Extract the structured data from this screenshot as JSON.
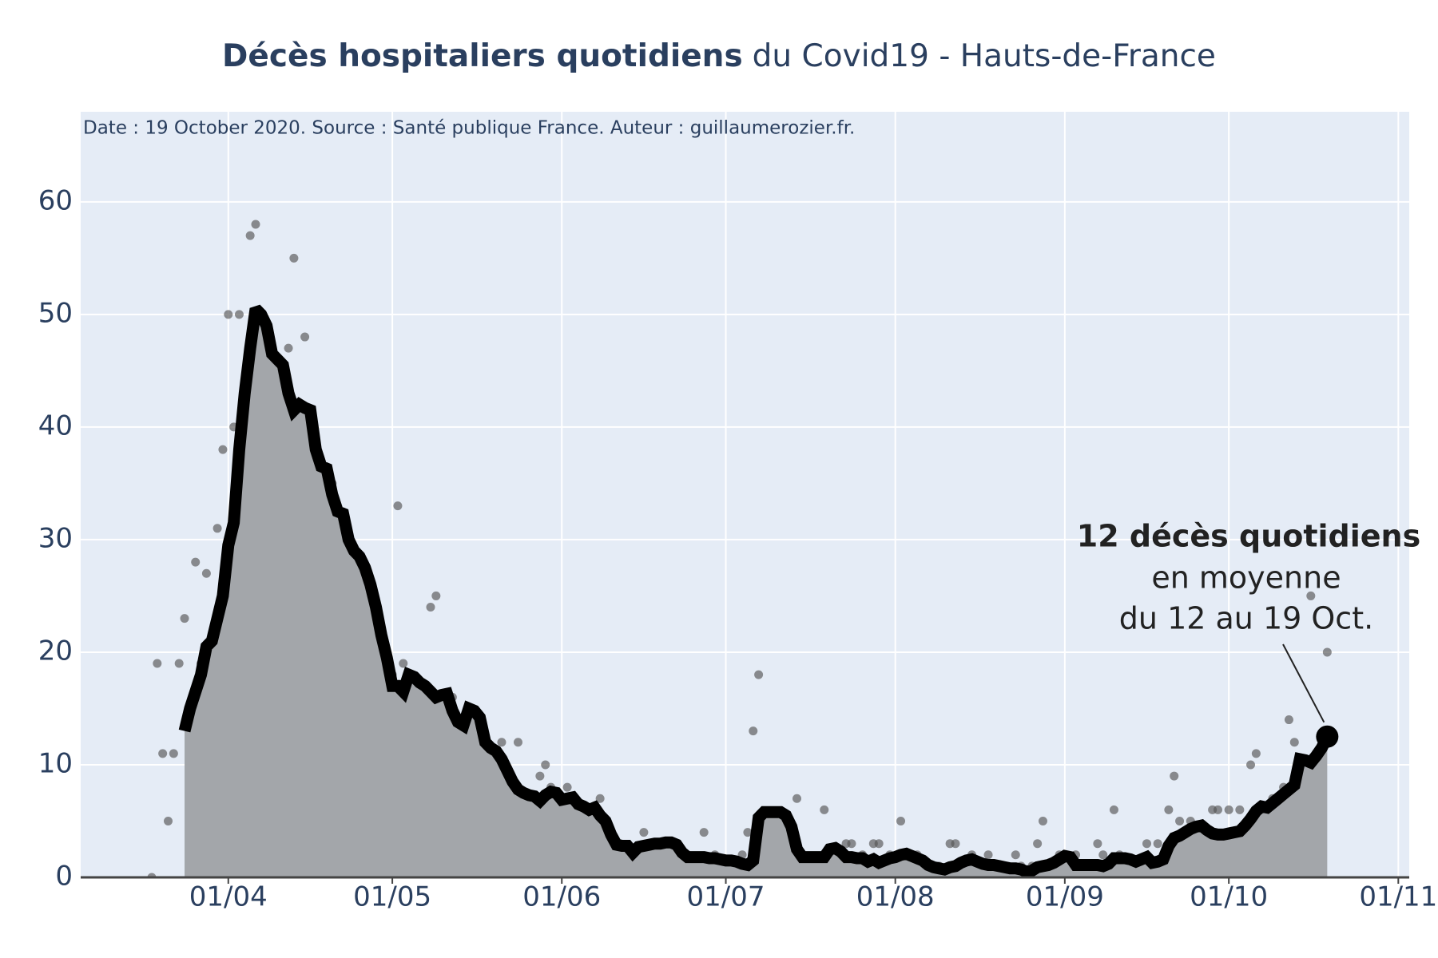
{
  "chart_data": {
    "type": "line",
    "title": "Décès hospitaliers quotidiens",
    "title_suffix": "du Covid19 - Hauts-de-France",
    "subtitle": "Date : 19 October 2020. Source : Santé publique France. Auteur : guillaumerozier.fr.",
    "annotation": {
      "title": "12 décès quotidiens",
      "lines": [
        "en moyenne",
        "du 12 au 19 Oct."
      ]
    },
    "x": [
      "18/03",
      "19/03",
      "20/03",
      "21/03",
      "22/03",
      "23/03",
      "24/03",
      "25/03",
      "26/03",
      "27/03",
      "28/03",
      "29/03",
      "30/03",
      "31/03",
      "01/04",
      "02/04",
      "03/04",
      "04/04",
      "05/04",
      "06/04",
      "07/04",
      "08/04",
      "09/04",
      "10/04",
      "11/04",
      "12/04",
      "13/04",
      "14/04",
      "15/04",
      "16/04",
      "17/04",
      "18/04",
      "19/04",
      "20/04",
      "21/04",
      "22/04",
      "23/04",
      "24/04",
      "25/04",
      "26/04",
      "27/04",
      "28/04",
      "29/04",
      "30/04",
      "01/05",
      "02/05",
      "03/05",
      "04/05",
      "05/05",
      "06/05",
      "07/05",
      "08/05",
      "09/05",
      "10/05",
      "11/05",
      "12/05",
      "13/05",
      "14/05",
      "15/05",
      "16/05",
      "17/05",
      "18/05",
      "19/05",
      "20/05",
      "21/05",
      "22/05",
      "23/05",
      "24/05",
      "25/05",
      "26/05",
      "27/05",
      "28/05",
      "29/05",
      "30/05",
      "31/05",
      "01/06",
      "02/06",
      "03/06",
      "04/06",
      "05/06",
      "06/06",
      "07/06",
      "08/06",
      "09/06",
      "10/06",
      "11/06",
      "12/06",
      "13/06",
      "14/06",
      "15/06",
      "16/06",
      "17/06",
      "18/06",
      "19/06",
      "20/06",
      "21/06",
      "22/06",
      "23/06",
      "24/06",
      "25/06",
      "26/06",
      "27/06",
      "28/06",
      "29/06",
      "30/06",
      "01/07",
      "02/07",
      "03/07",
      "04/07",
      "05/07",
      "06/07",
      "07/07",
      "08/07",
      "09/07",
      "10/07",
      "11/07",
      "12/07",
      "13/07",
      "14/07",
      "15/07",
      "16/07",
      "17/07",
      "18/07",
      "19/07",
      "20/07",
      "21/07",
      "22/07",
      "23/07",
      "24/07",
      "25/07",
      "26/07",
      "27/07",
      "28/07",
      "29/07",
      "30/07",
      "31/07",
      "01/08",
      "02/08",
      "03/08",
      "04/08",
      "05/08",
      "06/08",
      "07/08",
      "08/08",
      "09/08",
      "10/08",
      "11/08",
      "12/08",
      "13/08",
      "14/08",
      "15/08",
      "16/08",
      "17/08",
      "18/08",
      "19/08",
      "20/08",
      "21/08",
      "22/08",
      "23/08",
      "24/08",
      "25/08",
      "26/08",
      "27/08",
      "28/08",
      "29/08",
      "30/08",
      "31/08",
      "01/09",
      "02/09",
      "03/09",
      "04/09",
      "05/09",
      "06/09",
      "07/09",
      "08/09",
      "09/09",
      "10/09",
      "11/09",
      "12/09",
      "13/09",
      "14/09",
      "15/09",
      "16/09",
      "17/09",
      "18/09",
      "19/09",
      "20/09",
      "21/09",
      "22/09",
      "23/09",
      "24/09",
      "25/09",
      "26/09",
      "27/09",
      "28/09",
      "29/09",
      "30/09",
      "01/10",
      "02/10",
      "03/10",
      "04/10",
      "05/10",
      "06/10",
      "07/10",
      "08/10",
      "09/10",
      "10/10",
      "11/10",
      "12/10",
      "13/10",
      "14/10",
      "15/10",
      "16/10",
      "17/10",
      "18/10",
      "19/10"
    ],
    "series": [
      {
        "mode": "markers",
        "color": "#555555",
        "values": [
          0,
          19,
          11,
          5,
          11,
          19,
          23,
          13,
          28,
          19,
          27,
          15,
          31,
          38,
          50,
          40,
          50,
          32,
          57,
          58,
          44,
          36,
          44,
          34,
          33,
          47,
          55,
          31,
          48,
          23,
          17,
          33,
          36,
          35,
          24,
          24,
          10,
          24,
          15,
          25,
          19,
          16,
          6,
          14,
          18,
          33,
          19,
          16,
          11,
          4,
          10,
          24,
          25,
          8,
          10,
          16,
          12,
          9,
          15,
          6,
          7,
          4,
          7,
          4,
          12,
          6,
          7,
          12,
          6,
          3,
          5,
          9,
          10,
          8,
          2,
          1,
          8,
          2,
          1,
          2,
          1,
          1,
          7,
          5,
          2,
          2,
          2,
          1,
          2,
          0,
          4,
          3,
          1,
          2,
          1,
          0,
          2,
          1,
          2,
          0,
          1,
          4,
          1,
          2,
          0,
          1,
          0,
          1,
          2,
          4,
          13,
          18,
          4,
          1,
          1,
          1,
          0,
          1,
          7,
          2,
          1,
          1,
          0,
          6,
          1,
          2,
          1,
          3,
          3,
          1,
          2,
          0,
          3,
          3,
          1,
          2,
          0,
          5,
          1,
          0,
          2,
          0,
          1,
          0,
          1,
          0,
          3,
          3,
          1,
          0,
          2,
          0,
          1,
          2,
          1,
          0,
          1,
          0,
          2,
          1,
          0,
          1,
          3,
          5,
          1,
          0,
          2,
          0,
          1,
          2,
          1,
          1,
          0,
          3,
          2,
          1,
          6,
          2,
          1,
          0,
          1,
          1,
          3,
          1,
          3,
          0,
          6,
          9,
          5,
          3,
          5,
          2,
          2,
          3,
          6,
          6,
          2,
          6,
          2,
          6,
          4,
          10,
          11,
          5,
          4,
          7,
          5,
          8,
          14,
          12,
          7,
          8,
          25,
          3,
          5,
          20
        ]
      },
      {
        "mode": "lines",
        "color": "#000000",
        "fill": "#a3a6aa",
        "values": [
          null,
          null,
          null,
          null,
          null,
          null,
          13,
          15,
          16.5,
          18,
          20.5,
          21,
          23,
          25,
          29.5,
          31.5,
          38,
          43,
          47,
          50.5,
          50,
          49,
          46.5,
          46,
          45.5,
          43,
          41.5,
          42,
          41.7,
          41.5,
          38,
          36.5,
          36.3,
          34,
          32.5,
          32.3,
          30,
          29,
          28.5,
          27.5,
          26,
          24,
          21.5,
          19.5,
          17,
          17,
          16.5,
          18,
          17.8,
          17.3,
          17,
          16.5,
          16,
          16.2,
          16.3,
          14.8,
          13.8,
          13.5,
          15,
          14.8,
          14.2,
          12,
          11.5,
          11.2,
          10.5,
          9.5,
          8.5,
          7.8,
          7.5,
          7.3,
          7.2,
          6.8,
          7.3,
          7.6,
          7.5,
          6.9,
          7,
          7.1,
          6.5,
          6.3,
          6,
          6.2,
          5.5,
          5,
          3.8,
          2.9,
          2.8,
          2.8,
          2.2,
          2.7,
          2.8,
          2.9,
          3,
          3,
          3.1,
          3.1,
          2.9,
          2.2,
          1.8,
          1.8,
          1.8,
          1.8,
          1.7,
          1.7,
          1.6,
          1.5,
          1.5,
          1.4,
          1.2,
          1.1,
          1.5,
          5.3,
          5.8,
          5.8,
          5.8,
          5.8,
          5.5,
          4.5,
          2.5,
          1.8,
          1.8,
          1.8,
          1.8,
          1.8,
          2.5,
          2.6,
          2.3,
          1.8,
          1.8,
          1.7,
          1.7,
          1.4,
          1.6,
          1.3,
          1.5,
          1.7,
          1.8,
          2,
          2.1,
          1.9,
          1.7,
          1.5,
          1.1,
          0.9,
          0.8,
          0.7,
          0.9,
          1,
          1.3,
          1.5,
          1.6,
          1.4,
          1.2,
          1.1,
          1.1,
          1,
          0.9,
          0.8,
          0.8,
          0.7,
          0.5,
          0.6,
          0.9,
          1,
          1.1,
          1.3,
          1.6,
          1.9,
          1.8,
          1.1,
          1.1,
          1.1,
          1.1,
          1.1,
          1,
          1.2,
          1.7,
          1.7,
          1.7,
          1.6,
          1.4,
          1.6,
          1.8,
          1.3,
          1.4,
          1.6,
          2.8,
          3.5,
          3.7,
          4,
          4.3,
          4.5,
          4.6,
          4.2,
          3.9,
          3.8,
          3.8,
          3.9,
          4,
          4.1,
          4.6,
          5.2,
          5.9,
          6.3,
          6.2,
          6.6,
          7,
          7.4,
          7.8,
          8.2,
          10.5,
          10.4,
          10.2,
          10.8,
          11.5,
          12.5
        ]
      }
    ],
    "xlim": [
      "05/03",
      "03/11"
    ],
    "xticks": [
      "01/04",
      "01/05",
      "01/06",
      "01/07",
      "01/08",
      "01/09",
      "01/10",
      "01/11"
    ],
    "ylim": [
      0,
      68
    ],
    "yticks": [
      0,
      10,
      20,
      30,
      40,
      50,
      60
    ],
    "grid": true,
    "plot_background": "#e5ecf6"
  }
}
